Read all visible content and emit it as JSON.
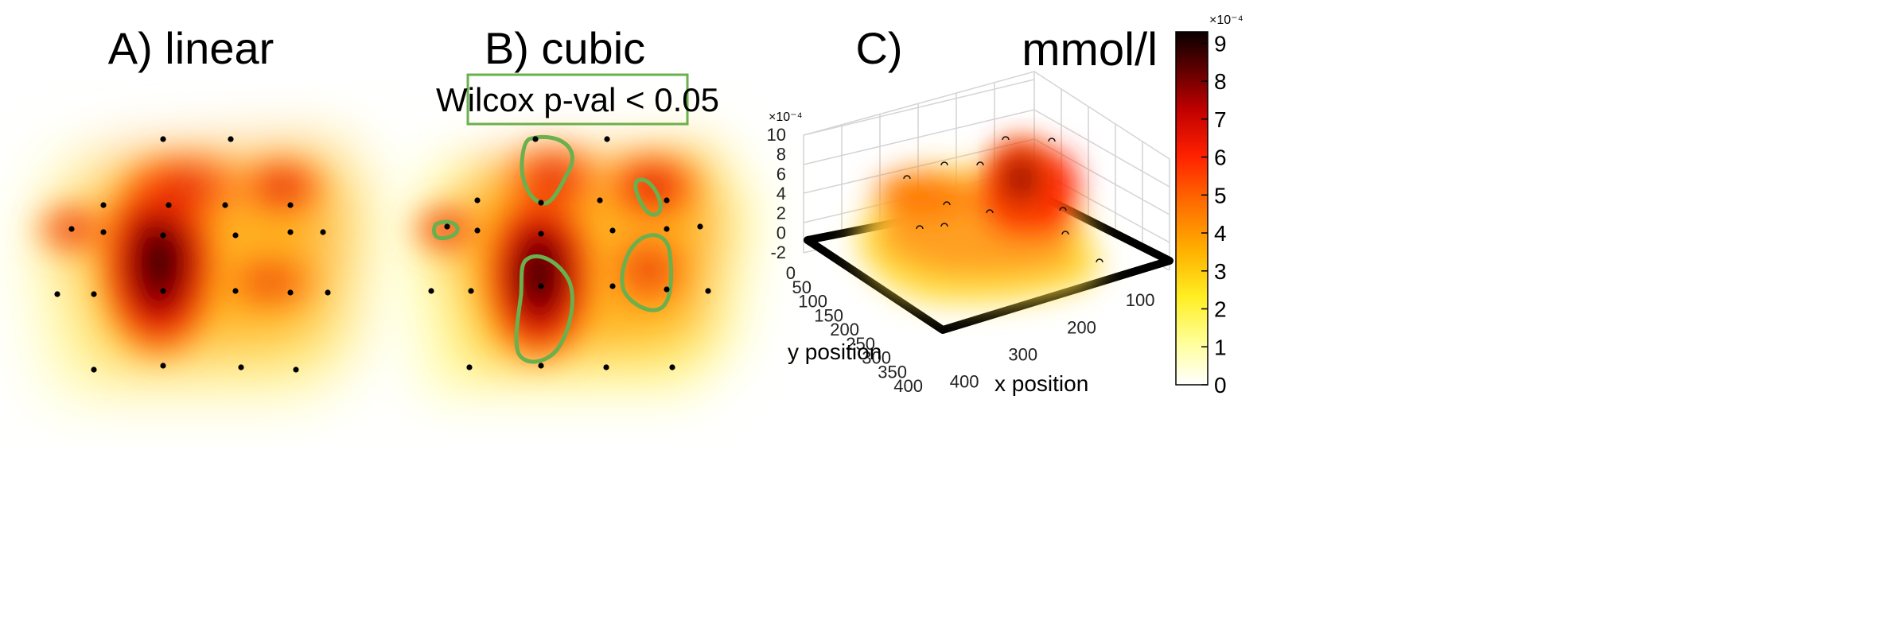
{
  "figure": {
    "panels": [
      {
        "title": "A) linear"
      },
      {
        "title": "B) cubic",
        "annotation": "Wilcox p-val < 0.05"
      },
      {
        "title": "C)",
        "unit": "mmol/l"
      }
    ]
  },
  "colors": {
    "accent_contour": "#6ab04c",
    "colormap": [
      "#ffffff",
      "#ffff66",
      "#ffd21e",
      "#ff8c00",
      "#ff3a00",
      "#d20000",
      "#7a0000",
      "#140000"
    ]
  },
  "chart_data": [
    {
      "type": "heatmap",
      "title": "A) linear",
      "interpolation": "linear",
      "axes_visible": false,
      "sensor_points": [
        [
          205,
          175
        ],
        [
          290,
          175
        ],
        [
          130,
          258
        ],
        [
          212,
          258
        ],
        [
          283,
          258
        ],
        [
          365,
          258
        ],
        [
          90,
          288
        ],
        [
          130,
          292
        ],
        [
          205,
          296
        ],
        [
          296,
          296
        ],
        [
          365,
          292
        ],
        [
          406,
          292
        ],
        [
          72,
          370
        ],
        [
          118,
          370
        ],
        [
          205,
          366
        ],
        [
          296,
          366
        ],
        [
          365,
          368
        ],
        [
          412,
          368
        ],
        [
          118,
          465
        ],
        [
          205,
          460
        ],
        [
          303,
          462
        ],
        [
          372,
          465
        ]
      ],
      "intensity_peaks": [
        {
          "center": [
            200,
            340
          ],
          "strength": 1.0
        },
        {
          "center": [
            240,
            250
          ],
          "strength": 0.55
        },
        {
          "center": [
            355,
            235
          ],
          "strength": 0.65
        },
        {
          "center": [
            92,
            288
          ],
          "strength": 0.6
        },
        {
          "center": [
            340,
            355
          ],
          "strength": 0.55
        }
      ]
    },
    {
      "type": "heatmap",
      "title": "B) cubic",
      "interpolation": "cubic",
      "axes_visible": false,
      "annotation": "Wilcox p-val < 0.05",
      "sensor_points": [
        [
          673,
          175
        ],
        [
          763,
          175
        ],
        [
          600,
          252
        ],
        [
          680,
          255
        ],
        [
          754,
          252
        ],
        [
          838,
          252
        ],
        [
          562,
          285
        ],
        [
          600,
          290
        ],
        [
          680,
          294
        ],
        [
          770,
          290
        ],
        [
          838,
          288
        ],
        [
          880,
          285
        ],
        [
          542,
          366
        ],
        [
          592,
          366
        ],
        [
          680,
          360
        ],
        [
          770,
          360
        ],
        [
          838,
          364
        ],
        [
          890,
          366
        ],
        [
          590,
          462
        ],
        [
          680,
          460
        ],
        [
          762,
          462
        ],
        [
          845,
          462
        ]
      ],
      "intensity_peaks": [
        {
          "center": [
            680,
            340
          ],
          "strength": 1.0
        },
        {
          "center": [
            700,
            230
          ],
          "strength": 0.65
        },
        {
          "center": [
            820,
            235
          ],
          "strength": 0.7
        },
        {
          "center": [
            560,
            288
          ],
          "strength": 0.6
        },
        {
          "center": [
            815,
            340
          ],
          "strength": 0.6
        }
      ],
      "significance_contours": [
        {
          "name": "upper-left"
        },
        {
          "name": "upper-right"
        },
        {
          "name": "left-small"
        },
        {
          "name": "lower-center"
        },
        {
          "name": "lower-right"
        }
      ]
    },
    {
      "type": "surface3d",
      "title": "C)",
      "zlabel_exponent": "×10⁻⁴",
      "z_ticks": [
        "-2",
        "0",
        "2",
        "4",
        "6",
        "8",
        "10"
      ],
      "ylabel": "y position",
      "xlabel": "x position",
      "y_ticks": [
        "0",
        "50",
        "100",
        "150",
        "200",
        "250",
        "300",
        "350",
        "400"
      ],
      "x_ticks": [
        "100",
        "200",
        "300",
        "400"
      ],
      "grid": true
    },
    {
      "type": "colorbar",
      "unit": "mmol/l",
      "exponent": "×10⁻⁴",
      "ticks": [
        "0",
        "1",
        "2",
        "3",
        "4",
        "5",
        "6",
        "7",
        "8",
        "9"
      ],
      "range": [
        0,
        9.3
      ]
    }
  ]
}
